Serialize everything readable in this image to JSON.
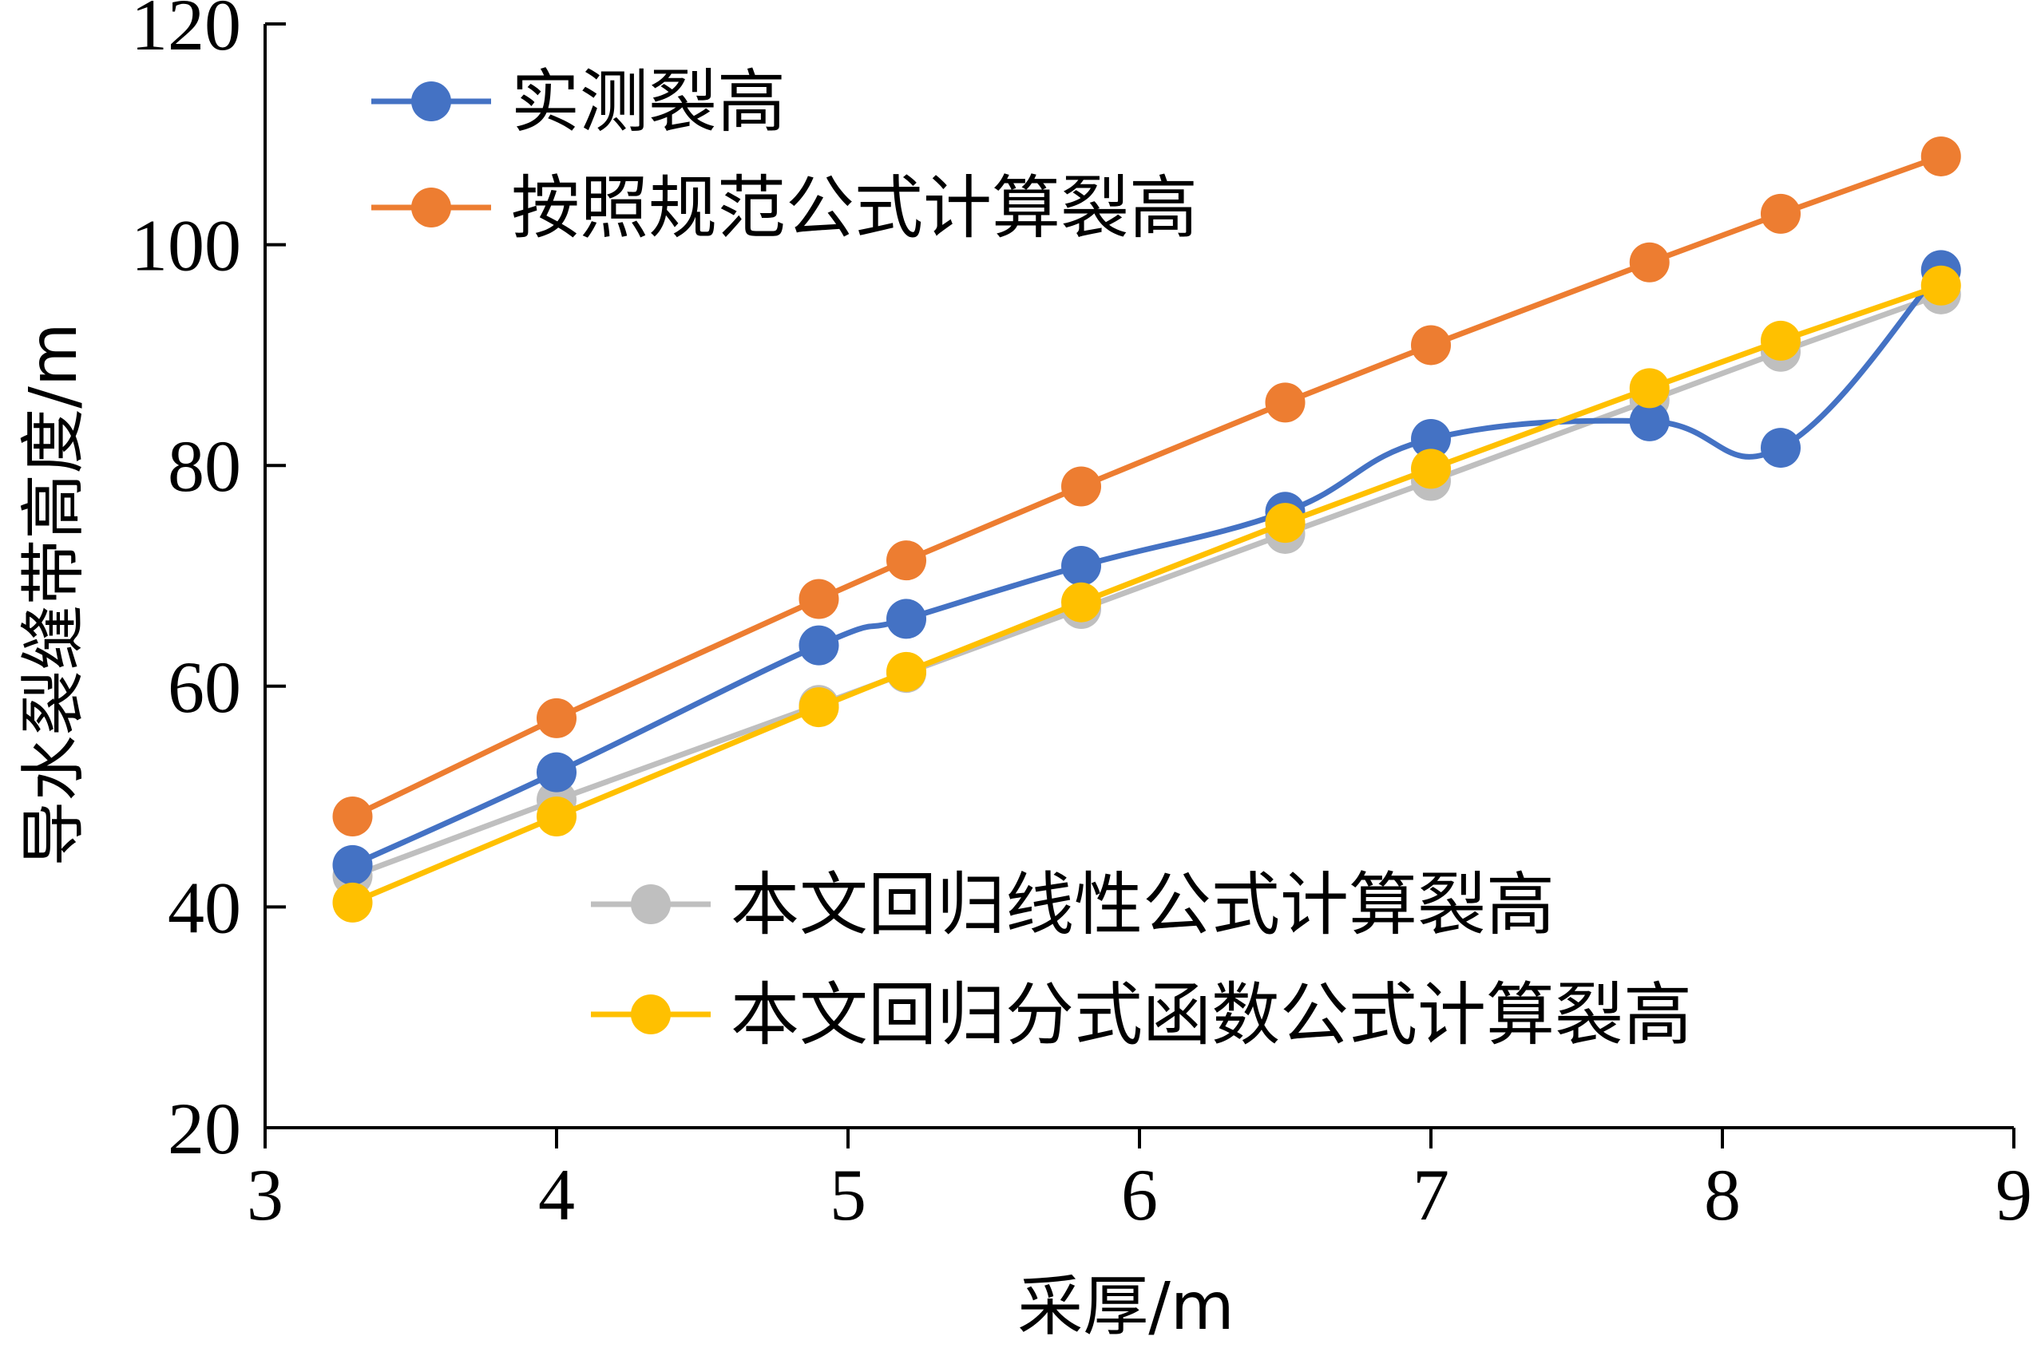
{
  "chart_data": {
    "type": "line",
    "title": "",
    "xlabel": "采厚/m",
    "ylabel": "导水裂缝带高度/m",
    "xlim": [
      3,
      9
    ],
    "ylim": [
      20,
      120
    ],
    "xticks": [
      3,
      4,
      5,
      6,
      7,
      8,
      9
    ],
    "yticks": [
      20,
      40,
      60,
      80,
      100,
      120
    ],
    "grid": false,
    "legend": [
      {
        "placement": "top-left",
        "series": [
          0,
          1
        ]
      },
      {
        "placement": "lower-right",
        "series": [
          2,
          3
        ]
      }
    ],
    "series": [
      {
        "name": "实测裂高",
        "color": "#4472C4",
        "smooth": true,
        "points": [
          [
            3.3,
            43.8
          ],
          [
            4.0,
            52.2
          ],
          [
            4.9,
            63.7
          ],
          [
            5.2,
            66.1
          ],
          [
            5.8,
            70.9
          ],
          [
            6.5,
            75.8
          ],
          [
            7.0,
            82.4
          ],
          [
            7.75,
            84.0
          ],
          [
            8.2,
            81.6
          ],
          [
            8.75,
            97.7
          ]
        ]
      },
      {
        "name": "按照规范公式计算裂高",
        "color": "#ED7D31",
        "smooth": false,
        "points": [
          [
            3.3,
            48.2
          ],
          [
            4.0,
            57.1
          ],
          [
            4.9,
            67.9
          ],
          [
            5.2,
            71.4
          ],
          [
            5.8,
            78.1
          ],
          [
            6.5,
            85.7
          ],
          [
            7.0,
            90.9
          ],
          [
            7.75,
            98.4
          ],
          [
            8.2,
            102.8
          ],
          [
            8.75,
            108.0
          ]
        ]
      },
      {
        "name": "本文回归线性公式计算裂高",
        "color": "#BFBFBF",
        "smooth": false,
        "points": [
          [
            3.3,
            42.8
          ],
          [
            4.0,
            49.7
          ],
          [
            4.9,
            58.3
          ],
          [
            5.2,
            61.2
          ],
          [
            5.8,
            67.0
          ],
          [
            6.5,
            73.8
          ],
          [
            7.0,
            78.6
          ],
          [
            7.75,
            85.9
          ],
          [
            8.2,
            90.3
          ],
          [
            8.75,
            95.5
          ]
        ]
      },
      {
        "name": "本文回归分式函数公式计算裂高",
        "color": "#FFC000",
        "smooth": false,
        "points": [
          [
            3.3,
            40.4
          ],
          [
            4.0,
            48.2
          ],
          [
            4.9,
            58.1
          ],
          [
            5.2,
            61.3
          ],
          [
            5.8,
            67.6
          ],
          [
            6.5,
            74.8
          ],
          [
            7.0,
            79.7
          ],
          [
            7.75,
            87.0
          ],
          [
            8.2,
            91.3
          ],
          [
            8.75,
            96.3
          ]
        ]
      }
    ]
  }
}
